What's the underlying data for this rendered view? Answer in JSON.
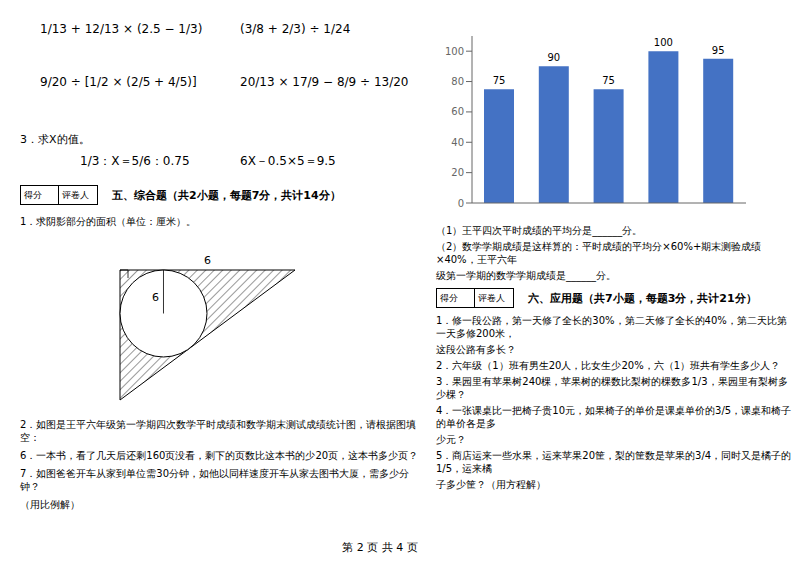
{
  "chart_data": {
    "type": "bar",
    "categories": [
      null,
      null,
      null,
      null,
      null
    ],
    "values": [
      75,
      90,
      75,
      100,
      95
    ],
    "color": "#4472C4",
    "ylim": [
      0,
      110
    ],
    "yticks": [
      0,
      20,
      40,
      60,
      80,
      100
    ],
    "grid": false,
    "data_labels": true,
    "tick_labels": "y",
    "annotations": [
      "1/13 + 12/13 × (2.5 − 1/3)",
      "(3/8 + 2/3) ÷ 1/24",
      "9/20 ÷ [1/2 × (2/5 + 4/5)]",
      "20/13 × 17/9 − 8/9 ÷ 13/20",
      "3．求X的值。",
      "1/3：X＝5/6：0.75",
      "6X－0.5×5＝9.5",
      "得分",
      "评卷人",
      "五、综合题（共2小题，每题7分，共计14分）",
      "1．求阴影部分的面积（单位：厘米）。",
      "6",
      "6",
      "2．如图是王平六年级第一学期四次数学平时成绩和数学期末测试成绩统计图，请根据图填空：",
      "6．一本书，看了几天后还剩160页没看，剩下的页数比这本书的少20页，这本书多少页？",
      "7．如图爸爸开车从家到单位需30分钟，如他以同样速度开车从家去图书大厦，需多少分钟？",
      "（用比例解）",
      "（1）王平四次平时成绩的平均分是______分。",
      "（2）数学学期成绩是这样算的：平时成绩的平均分×60%+期末测验成绩×40%，王平六年",
      "级第一学期的数学学期成绩是______分。",
      "得分",
      "评卷人",
      "六、应用题（共7小题，每题3分，共计21分）",
      "1．修一段公路，第一天修了全长的30%，第二天修了全长的40%，第二天比第一天多修200米，",
      "这段公路有多长？",
      "2．六年级（1）班有男生20人，比女生少20%，六（1）班共有学生多少人？",
      "3．果园里有苹果树240棵，苹果树的棵数比梨树的棵数多1/3，果园里有梨树多少棵？",
      "4．一张课桌比一把椅子贵10元，如果椅子的单价是课桌单价的3/5，课桌和椅子的单价各是多",
      "少元？",
      "5．商店运来一些水果，运来苹果20筐，梨的筐数是苹果的3/4，同时又是橘子的1/5，运来橘",
      "子多少筐？（用方程解）",
      "第 2 页 共 4 页"
    ]
  }
}
